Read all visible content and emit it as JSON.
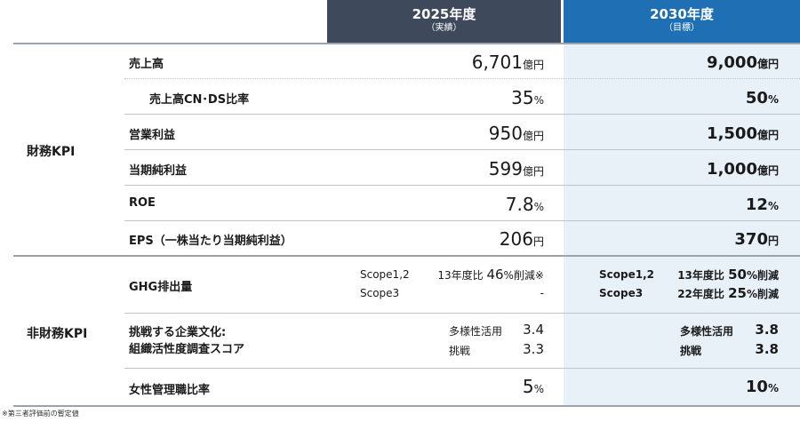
{
  "header": {
    "col2025_title": "2025年度",
    "col2025_sub": "（実績）",
    "col2030_title": "2030年度",
    "col2030_sub": "（目標）"
  },
  "groups": {
    "financial": "財務KPI",
    "nonfinancial": "非財務KPI"
  },
  "financial_rows": [
    {
      "label": "売上高",
      "v2025": "6,701",
      "u2025": "億円",
      "v2030": "9,000",
      "u2030": "億円"
    },
    {
      "label": "売上高CN･DS比率",
      "v2025": "35",
      "u2025": "%",
      "v2030": "50",
      "u2030": "%"
    },
    {
      "label": "営業利益",
      "v2025": "950",
      "u2025": "億円",
      "v2030": "1,500",
      "u2030": "億円"
    },
    {
      "label": "当期純利益",
      "v2025": "599",
      "u2025": "億円",
      "v2030": "1,000",
      "u2030": "億円"
    },
    {
      "label": "ROE",
      "v2025": "7.8",
      "u2025": "%",
      "v2030": "12",
      "u2030": "%"
    },
    {
      "label": "EPS（一株当たり当期純利益）",
      "v2025": "206",
      "u2025": "円",
      "v2030": "370",
      "u2030": "円"
    }
  ],
  "ghg": {
    "label": "GHG排出量",
    "a2025_scope": "Scope1,2",
    "a2025_desc": "13年度比",
    "a2025_num": "46",
    "a2025_tail": "%削減※",
    "b2025_scope": "Scope3",
    "b2025_val": "-",
    "a2030_scope": "Scope1,2",
    "a2030_desc": "13年度比",
    "a2030_num": "50",
    "a2030_tail": "%削減",
    "b2030_scope": "Scope3",
    "b2030_desc": "22年度比",
    "b2030_num": "25",
    "b2030_tail": "%削減"
  },
  "culture": {
    "label1": "挑戦する企業文化:",
    "label2": "組織活性度調査スコア",
    "a_name": "多様性活用",
    "b_name": "挑戦",
    "a2025": "3.4",
    "b2025": "3.3",
    "a2030": "3.8",
    "b2030": "3.8"
  },
  "women": {
    "label": "女性管理職比率",
    "v2025": "5",
    "u2025": "%",
    "v2030": "10",
    "u2030": "%"
  },
  "footnote": "※第三者評価前の暫定値"
}
